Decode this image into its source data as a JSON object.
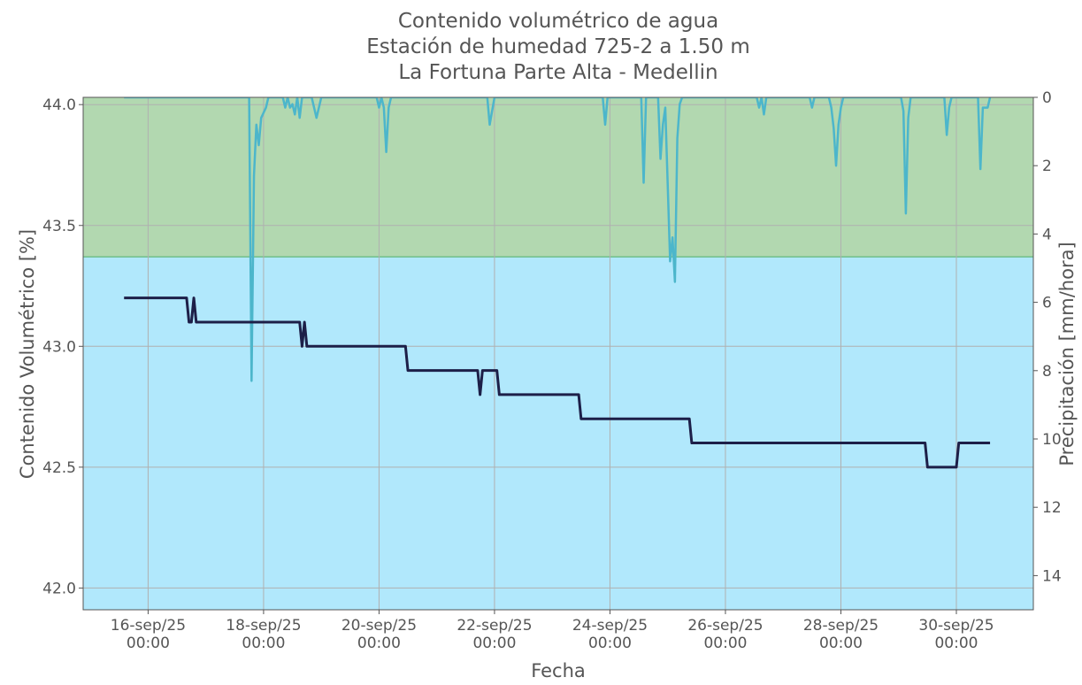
{
  "chart_data": {
    "type": "line",
    "title": [
      "Contenido volumétrico de agua",
      "Estación de humedad 725-2 a 1.50 m",
      "La Fortuna Parte Alta - Medellin"
    ],
    "xlabel": "Fecha",
    "ylabel": "Contenido Volumétrico [%]",
    "y2label": "Precipitación [mm/hora]",
    "xlim": [
      "2025-09-14 21:00",
      "2025-10-01 08:00"
    ],
    "xticks": [
      {
        "value": "2025-09-16 00:00",
        "label": "16-sep/25\n00:00"
      },
      {
        "value": "2025-09-18 00:00",
        "label": "18-sep/25\n00:00"
      },
      {
        "value": "2025-09-20 00:00",
        "label": "20-sep/25\n00:00"
      },
      {
        "value": "2025-09-22 00:00",
        "label": "22-sep/25\n00:00"
      },
      {
        "value": "2025-09-24 00:00",
        "label": "24-sep/25\n00:00"
      },
      {
        "value": "2025-09-26 00:00",
        "label": "26-sep/25\n00:00"
      },
      {
        "value": "2025-09-28 00:00",
        "label": "28-sep/25\n00:00"
      },
      {
        "value": "2025-09-30 00:00",
        "label": "30-sep/25\n00:00"
      }
    ],
    "ylim": [
      41.91,
      44.03
    ],
    "yticks": [
      {
        "value": 42,
        "label": "42.0"
      },
      42.5,
      {
        "value": 43,
        "label": "43.0"
      },
      43.5,
      {
        "value": 44,
        "label": "44.0"
      }
    ],
    "y2lim": [
      0,
      15
    ],
    "y2ticks": [
      0,
      2,
      4,
      6,
      8,
      10,
      12,
      14
    ],
    "y2_inverted": true,
    "grid": true,
    "bands": [
      {
        "from": 43.37,
        "to": 44.03,
        "color": "#b2d8b0"
      },
      {
        "from": 41.91,
        "to": 43.37,
        "color": "#b1e8fc"
      }
    ],
    "series": [
      {
        "color": "#1d1f48",
        "axis": "y",
        "x": [
          "2025-09-15 14:00",
          "2025-09-16 16:00",
          "2025-09-16 17:00",
          "2025-09-16 18:00",
          "2025-09-16 19:00",
          "2025-09-16 20:00",
          "2025-09-18 15:00",
          "2025-09-18 16:00",
          "2025-09-18 17:00",
          "2025-09-18 18:00",
          "2025-09-20 11:00",
          "2025-09-20 12:00",
          "2025-09-21 17:00",
          "2025-09-21 18:00",
          "2025-09-21 19:00",
          "2025-09-22 01:00",
          "2025-09-22 02:00",
          "2025-09-23 11:00",
          "2025-09-23 12:00",
          "2025-09-25 09:00",
          "2025-09-25 10:00",
          "2025-09-29 11:00",
          "2025-09-29 12:00",
          "2025-09-30 00:00",
          "2025-09-30 01:00",
          "2025-09-30 14:00"
        ],
        "values": [
          43.2,
          43.2,
          43.1,
          43.1,
          43.2,
          43.1,
          43.1,
          43.0,
          43.1,
          43.0,
          43.0,
          42.9,
          42.9,
          42.8,
          42.9,
          42.9,
          42.8,
          42.8,
          42.7,
          42.7,
          42.6,
          42.6,
          42.5,
          42.5,
          42.6,
          42.6
        ]
      },
      {
        "color": "#4cb6cb",
        "axis": "y2",
        "x": [
          "2025-09-15 14:00",
          "2025-09-17 18:00",
          "2025-09-17 19:00",
          "2025-09-17 20:00",
          "2025-09-17 21:00",
          "2025-09-17 22:00",
          "2025-09-17 23:00",
          "2025-09-18 01:00",
          "2025-09-18 02:00",
          "2025-09-18 08:00",
          "2025-09-18 09:00",
          "2025-09-18 10:00",
          "2025-09-18 11:00",
          "2025-09-18 12:00",
          "2025-09-18 13:00",
          "2025-09-18 14:00",
          "2025-09-18 15:00",
          "2025-09-18 16:00",
          "2025-09-18 20:00",
          "2025-09-18 21:00",
          "2025-09-18 22:00",
          "2025-09-19 00:00",
          "2025-09-19 23:00",
          "2025-09-20 00:00",
          "2025-09-20 01:00",
          "2025-09-20 02:00",
          "2025-09-20 03:00",
          "2025-09-20 04:00",
          "2025-09-20 05:00",
          "2025-09-21 21:00",
          "2025-09-21 22:00",
          "2025-09-22 00:00",
          "2025-09-23 21:00",
          "2025-09-23 22:00",
          "2025-09-23 23:00",
          "2025-09-24 13:00",
          "2025-09-24 14:00",
          "2025-09-24 15:00",
          "2025-09-24 20:00",
          "2025-09-24 21:00",
          "2025-09-24 22:00",
          "2025-09-24 23:00",
          "2025-09-25 01:00",
          "2025-09-25 02:00",
          "2025-09-25 03:00",
          "2025-09-25 04:00",
          "2025-09-25 05:00",
          "2025-09-25 06:00",
          "2025-09-26 13:00",
          "2025-09-26 14:00",
          "2025-09-26 15:00",
          "2025-09-26 16:00",
          "2025-09-26 17:00",
          "2025-09-27 11:00",
          "2025-09-27 12:00",
          "2025-09-27 13:00",
          "2025-09-27 19:00",
          "2025-09-27 20:00",
          "2025-09-27 21:00",
          "2025-09-27 22:00",
          "2025-09-27 23:00",
          "2025-09-28 00:00",
          "2025-09-28 01:00",
          "2025-09-29 01:00",
          "2025-09-29 02:00",
          "2025-09-29 03:00",
          "2025-09-29 04:00",
          "2025-09-29 05:00",
          "2025-09-29 19:00",
          "2025-09-29 20:00",
          "2025-09-29 21:00",
          "2025-09-29 22:00",
          "2025-09-30 09:00",
          "2025-09-30 10:00",
          "2025-09-30 11:00",
          "2025-09-30 12:00",
          "2025-09-30 13:00",
          "2025-09-30 14:00"
        ],
        "values": [
          0,
          0,
          8.3,
          2.3,
          0.8,
          1.4,
          0.6,
          0.3,
          0,
          0,
          0.3,
          0,
          0.3,
          0.2,
          0.5,
          0,
          0.6,
          0,
          0,
          0.3,
          0.6,
          0,
          0,
          0.3,
          0,
          0.3,
          1.6,
          0.3,
          0,
          0,
          0.8,
          0,
          0,
          0.8,
          0,
          0,
          2.5,
          0,
          0,
          1.8,
          0.8,
          0.3,
          4.8,
          4.1,
          5.4,
          1.2,
          0.2,
          0,
          0,
          0.3,
          0,
          0.5,
          0,
          0,
          0.3,
          0,
          0,
          0.3,
          0.9,
          2.0,
          0.8,
          0.3,
          0,
          0,
          0.4,
          3.4,
          0.6,
          0,
          0,
          1.1,
          0.3,
          0,
          0,
          2.1,
          0.3,
          0.3,
          0.3,
          0
        ]
      }
    ]
  }
}
